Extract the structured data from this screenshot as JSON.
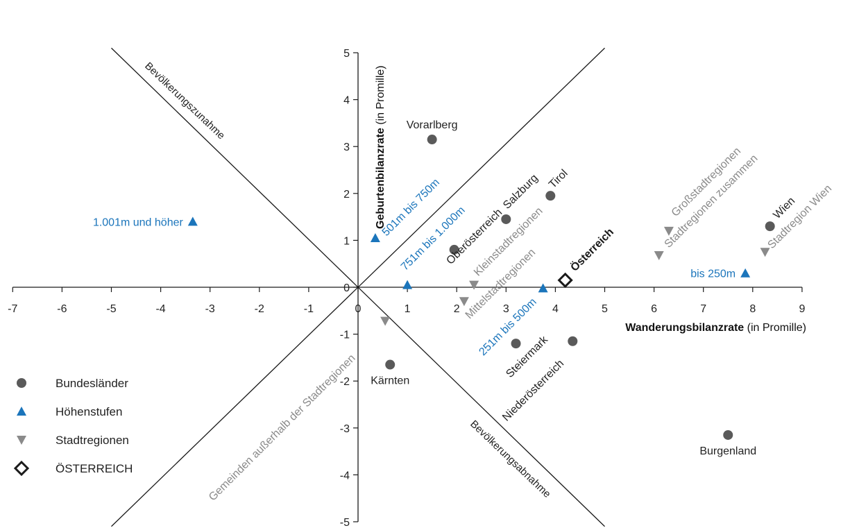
{
  "chart_data": {
    "type": "scatter",
    "x_axis": {
      "label_bold": "Wanderungsbilanzrate",
      "label_rest": " (in Promille)",
      "min": -7,
      "max": 9,
      "ticks": [
        "-7",
        "-6",
        "-5",
        "-4",
        "-3",
        "-2",
        "-1",
        "0",
        "1",
        "2",
        "3",
        "4",
        "5",
        "6",
        "7",
        "8",
        "9"
      ]
    },
    "y_axis": {
      "label_bold": "Geburtenbilanzrate",
      "label_rest": " (in Promille)",
      "min": -5,
      "max": 5,
      "ticks": [
        "-5",
        "-4",
        "-3",
        "-2",
        "-1",
        "0",
        "1",
        "2",
        "3",
        "4",
        "5"
      ]
    },
    "diagonals": {
      "upper_label": "Bevölkerungszunahme",
      "lower_label": "Bevölkerungsabnahme"
    },
    "colors": {
      "bundeslaender": "#5a5a5a",
      "hoehenstufen": "#1b75bb",
      "stadtregionen": "#8a8a8a",
      "oesterreich": "#1a1a1a",
      "axes": "#1a1a1a"
    },
    "series": [
      {
        "name": "Bundesländer",
        "marker": "circle",
        "points": [
          {
            "label": "Vorarlberg",
            "x": 1.5,
            "y": 3.15
          },
          {
            "label": "Tirol",
            "x": 3.9,
            "y": 1.95
          },
          {
            "label": "Salzburg",
            "x": 3.0,
            "y": 1.45
          },
          {
            "label": "Oberösterreich",
            "x": 1.95,
            "y": 0.8
          },
          {
            "label": "Wien",
            "x": 8.35,
            "y": 1.3
          },
          {
            "label": "Steiermark",
            "x": 3.2,
            "y": -1.2
          },
          {
            "label": "Niederösterreich",
            "x": 4.35,
            "y": -1.15
          },
          {
            "label": "Kärnten",
            "x": 0.65,
            "y": -1.65
          },
          {
            "label": "Burgenland",
            "x": 7.5,
            "y": -3.15
          }
        ]
      },
      {
        "name": "Höhenstufen",
        "marker": "triangle-up",
        "points": [
          {
            "label": "1.001m und höher",
            "x": -3.35,
            "y": 1.4
          },
          {
            "label": "501m bis 750m",
            "x": 0.35,
            "y": 1.05
          },
          {
            "label": "751m bis 1.000m",
            "x": 1.0,
            "y": 0.05
          },
          {
            "label": "251m bis 500m",
            "x": 3.75,
            "y": -0.02
          },
          {
            "label": "bis 250m",
            "x": 7.85,
            "y": 0.3
          }
        ]
      },
      {
        "name": "Stadtregionen",
        "marker": "triangle-down",
        "points": [
          {
            "label": "Großstadtregionen",
            "x": 6.3,
            "y": 1.2
          },
          {
            "label": "Stadtregionen zusammen",
            "x": 6.1,
            "y": 0.68
          },
          {
            "label": "Stadtregion Wien",
            "x": 8.25,
            "y": 0.75
          },
          {
            "label": "Kleinstadtregionen",
            "x": 2.35,
            "y": 0.05
          },
          {
            "label": "Mittelstadtregionen",
            "x": 2.15,
            "y": -0.3
          },
          {
            "label": "Gemeinden außerhalb der Stadtregionen",
            "x": 0.55,
            "y": -0.72
          }
        ]
      },
      {
        "name": "ÖSTERREICH",
        "marker": "diamond",
        "points": [
          {
            "label": "Österreich",
            "x": 4.2,
            "y": 0.15
          }
        ]
      }
    ],
    "legend": {
      "position": "bottom-left",
      "entries": [
        "Bundesländer",
        "Höhenstufen",
        "Stadtregionen",
        "ÖSTERREICH"
      ]
    }
  }
}
